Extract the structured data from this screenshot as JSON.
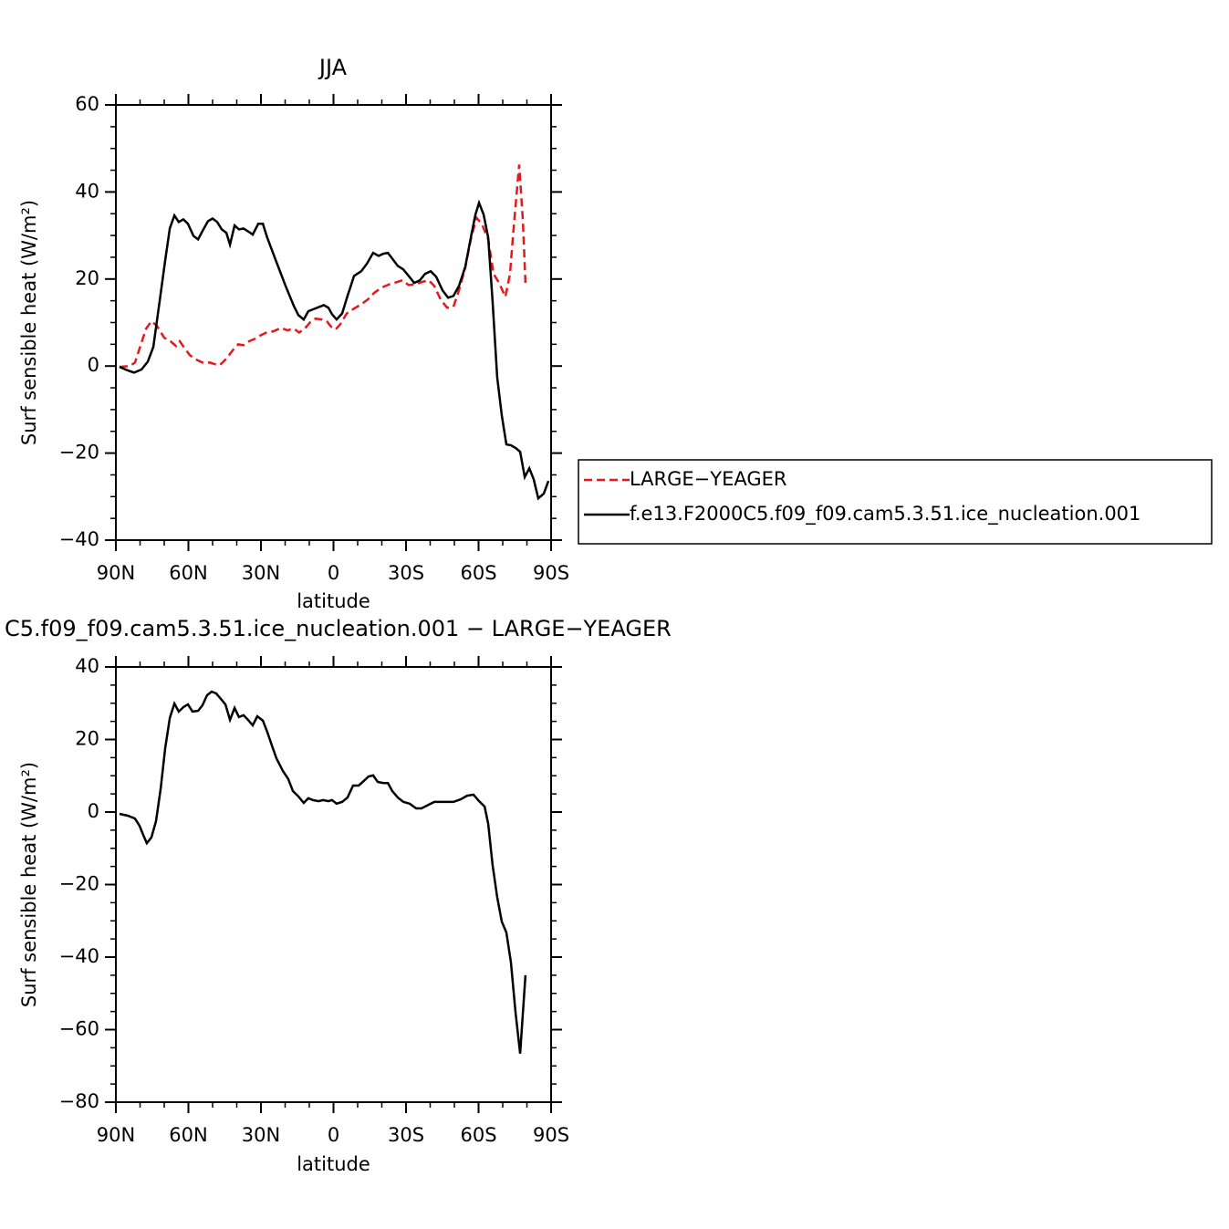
{
  "chart_data": [
    {
      "type": "line",
      "title": "JJA",
      "xlabel": "latitude",
      "ylabel": "Surf sensible heat (W/m²)",
      "xlim": [
        90,
        -90
      ],
      "xticks": [
        {
          "value": 90,
          "label": "90N"
        },
        {
          "value": 60,
          "label": "60N"
        },
        {
          "value": 30,
          "label": "30N"
        },
        0,
        {
          "value": -30,
          "label": "30S"
        },
        {
          "value": -60,
          "label": "60S"
        },
        {
          "value": -90,
          "label": "90S"
        }
      ],
      "ylim": [
        -40,
        60
      ],
      "yticks": [
        {
          "value": -40,
          "label": "−40"
        },
        {
          "value": -20,
          "label": "−20"
        },
        0,
        20,
        40,
        60
      ],
      "legend": "right",
      "series": [
        {
          "name": "LARGE−YEAGER",
          "color": "#e31a1c",
          "line_style": "dashed",
          "x": [
            88.5,
            84.3,
            82.1,
            79.4,
            77.5,
            75.3,
            73,
            70,
            67.4,
            65.1,
            63.6,
            61.7,
            59.4,
            56.8,
            54.2,
            51.1,
            48.9,
            47,
            44.3,
            41.7,
            39.4,
            37.2,
            34.9,
            32.3,
            30,
            27.7,
            24.7,
            21.7,
            19.1,
            16.4,
            14.2,
            11.9,
            9.6,
            7.4,
            4.7,
            2.8,
            0.9,
            -0.9,
            -2.8,
            -5.5,
            -8.5,
            -11.5,
            -14.2,
            -16.8,
            -19.8,
            -23.2,
            -26.2,
            -28.5,
            -31.1,
            -33.8,
            -36.4,
            -39.4,
            -41.7,
            -44.3,
            -47,
            -49.6,
            -51.9,
            -54.5,
            -56.8,
            -59.1,
            -61.3,
            -64,
            -66.2,
            -68.5,
            -71.1,
            -73,
            -74.5,
            -76.8,
            -78.3,
            -79.4
          ],
          "values": [
            -0.2,
            0,
            0.8,
            5.4,
            8.6,
            10.3,
            9.2,
            6.5,
            5.7,
            4.6,
            5.7,
            4.2,
            2.5,
            1.5,
            0.8,
            0.8,
            0.4,
            0.2,
            1.7,
            3.6,
            5,
            4.8,
            5.7,
            6.3,
            7.1,
            7.7,
            8,
            8.8,
            8.2,
            8.6,
            7.7,
            8.6,
            10.1,
            10.9,
            10.7,
            10.3,
            9,
            8.4,
            9.6,
            12.1,
            13.2,
            14.2,
            15.3,
            16.8,
            18,
            18.8,
            19.3,
            19.7,
            18.6,
            18.8,
            19.3,
            19.7,
            18.4,
            15.3,
            13.4,
            13.6,
            17.4,
            22.6,
            29.1,
            34.1,
            32.7,
            29.1,
            21.2,
            19.1,
            15.9,
            21.2,
            31.6,
            46.3,
            33.7,
            19.1
          ]
        },
        {
          "name": "f.e13.F2000C5.f09_f09.cam5.3.51.ice_nucleation.001",
          "color": "#000000",
          "line_style": "solid",
          "x": [
            88.5,
            85.1,
            82.5,
            79.4,
            76.8,
            74.5,
            71.9,
            69.6,
            67.7,
            65.8,
            64,
            62.1,
            60.2,
            57.9,
            56,
            54.2,
            51.9,
            50,
            48.1,
            46.2,
            44.3,
            42.8,
            40.9,
            39.1,
            37.2,
            34.9,
            33.4,
            31.1,
            29.2,
            27.4,
            23.6,
            19.8,
            16.4,
            14.5,
            12.3,
            10.4,
            7.7,
            4,
            2.1,
            0.6,
            -1.3,
            -3.6,
            -5.8,
            -8.5,
            -11.5,
            -13.8,
            -16.4,
            -18.7,
            -20.6,
            -22.5,
            -24.3,
            -26.6,
            -28.9,
            -31.1,
            -33.4,
            -35.7,
            -37.9,
            -40.2,
            -42.5,
            -45.1,
            -47.4,
            -49.6,
            -51.9,
            -54.5,
            -56.8,
            -58.7,
            -60.2,
            -62.1,
            -64,
            -65.8,
            -67.7,
            -69.6,
            -71.5,
            -73.4,
            -75.3,
            -77.2,
            -79.1,
            -81,
            -82.8,
            -84.7,
            -87,
            -88.9
          ],
          "values": [
            -0.2,
            -1,
            -1.5,
            -0.8,
            1,
            4.4,
            14.9,
            24.3,
            31.6,
            34.6,
            33.1,
            33.7,
            32.7,
            29.9,
            29.1,
            31,
            33.3,
            33.9,
            33.1,
            31.4,
            30.6,
            27.9,
            32.3,
            31.4,
            31.6,
            30.8,
            30.2,
            32.7,
            32.7,
            29.5,
            23.9,
            18.4,
            13.8,
            11.7,
            10.7,
            12.6,
            13.2,
            14,
            13.4,
            11.9,
            10.7,
            12.1,
            16.1,
            20.7,
            21.8,
            23.5,
            26,
            25.3,
            25.8,
            26,
            24.7,
            23,
            22.2,
            20.7,
            19.1,
            19.7,
            21.2,
            21.8,
            20.5,
            17.4,
            15.7,
            16.1,
            18.4,
            22.8,
            29.5,
            34.8,
            37.5,
            34.8,
            29.5,
            14.9,
            -2.5,
            -11.3,
            -18,
            -18.2,
            -18.8,
            -19.7,
            -25.5,
            -23.5,
            -26,
            -30.4,
            -29.3,
            -26.4
          ]
        }
      ]
    },
    {
      "type": "line",
      "title": "C5.f09_f09.cam5.3.51.ice_nucleation.001 − LARGE−YEAGER",
      "xlabel": "latitude",
      "ylabel": "Surf sensible heat (W/m²)",
      "xlim": [
        90,
        -90
      ],
      "xticks": [
        {
          "value": 90,
          "label": "90N"
        },
        {
          "value": 60,
          "label": "60N"
        },
        {
          "value": 30,
          "label": "30N"
        },
        0,
        {
          "value": -30,
          "label": "30S"
        },
        {
          "value": -60,
          "label": "60S"
        },
        {
          "value": -90,
          "label": "90S"
        }
      ],
      "ylim": [
        -80,
        40
      ],
      "yticks": [
        {
          "value": -80,
          "label": "−80"
        },
        {
          "value": -60,
          "label": "−60"
        },
        {
          "value": -40,
          "label": "−40"
        },
        {
          "value": -20,
          "label": "−20"
        },
        0,
        20,
        40
      ],
      "series": [
        {
          "color": "#000000",
          "line_style": "solid",
          "x": [
            88.5,
            85.1,
            82.1,
            80.2,
            78.7,
            77.2,
            75.3,
            73.4,
            71.5,
            69.6,
            67.7,
            65.8,
            64,
            62.1,
            60.2,
            58.3,
            56,
            54.2,
            52.3,
            50.4,
            48.5,
            46.6,
            44.7,
            42.8,
            40.9,
            39.1,
            37.2,
            35.3,
            33.4,
            31.5,
            29.2,
            27.4,
            25.5,
            23.6,
            20.9,
            18.7,
            16.8,
            14.5,
            12.3,
            10.4,
            8.5,
            6.2,
            4.3,
            2.1,
            0.6,
            -1.3,
            -3.6,
            -5.8,
            -8.1,
            -10.4,
            -12.6,
            -14.5,
            -16.4,
            -18.3,
            -20.6,
            -22.5,
            -24.3,
            -26.6,
            -28.9,
            -31.5,
            -34.2,
            -36.4,
            -38.7,
            -41.7,
            -45.1,
            -49.6,
            -52.6,
            -55.3,
            -57.9,
            -60.2,
            -62.5,
            -64,
            -65.8,
            -67.7,
            -69.6,
            -71.5,
            -73.4,
            -75.3,
            -77.2,
            -79.4
          ],
          "values": [
            -0.5,
            -1,
            -1.8,
            -3.8,
            -6.3,
            -8.6,
            -7,
            -2.5,
            6.3,
            17.6,
            25.9,
            29.9,
            27.7,
            28.9,
            29.7,
            27.7,
            27.9,
            29.4,
            32.2,
            33.2,
            32.7,
            31.2,
            29.7,
            25.4,
            28.7,
            26.2,
            26.7,
            25.4,
            23.9,
            26.4,
            25.2,
            22.1,
            18.4,
            14.8,
            11.3,
            9.1,
            5.8,
            4.3,
            2.5,
            3.8,
            3.3,
            3,
            3.3,
            3,
            3.3,
            2.3,
            2.8,
            4,
            7.3,
            7.3,
            8.6,
            9.8,
            10.1,
            8.3,
            8,
            8,
            5.8,
            4,
            2.8,
            2.3,
            1,
            1,
            1.8,
            2.8,
            2.8,
            2.8,
            3.5,
            4.5,
            4.8,
            3,
            1.5,
            -3.3,
            -14.6,
            -23.4,
            -30.2,
            -33.2,
            -41.5,
            -55.3,
            -66.6,
            -45
          ]
        }
      ]
    }
  ]
}
